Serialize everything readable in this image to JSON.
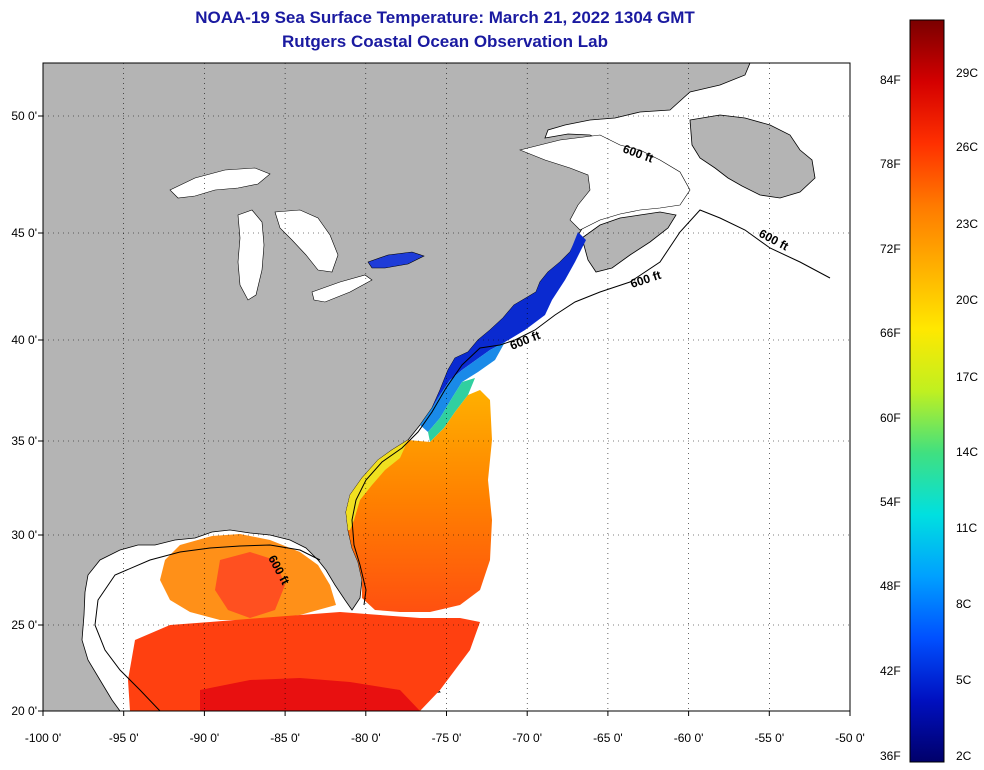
{
  "title": "NOAA-19 Sea Surface Temperature:  March 21, 2022 1304 GMT",
  "subtitle": "Rutgers Coastal Ocean Observation Lab",
  "x_ticks": [
    "-100 0'",
    "-95 0'",
    "-90 0'",
    "-85 0'",
    "-80 0'",
    "-75 0'",
    "-70 0'",
    "-65 0'",
    "-60 0'",
    "-55 0'",
    "-50 0'"
  ],
  "y_ticks": [
    "50 0'",
    "45 0'",
    "40 0'",
    "35 0'",
    "30 0'",
    "25 0'",
    "20 0'"
  ],
  "contour_labels": [
    "600 ft",
    "600 ft",
    "600 ft",
    "600 ft",
    "600 ft"
  ],
  "colorbar": {
    "f_labels": [
      "84F",
      "78F",
      "72F",
      "66F",
      "60F",
      "54F",
      "48F",
      "42F",
      "36F"
    ],
    "c_labels": [
      "29C",
      "26C",
      "23C",
      "20C",
      "17C",
      "14C",
      "11C",
      "8C",
      "5C",
      "2C"
    ],
    "colors": [
      "#7a0000",
      "#d40000",
      "#ff3000",
      "#ff7a00",
      "#ffb000",
      "#ffe800",
      "#c0f020",
      "#40e080",
      "#00e0e0",
      "#00a0ff",
      "#0050ff",
      "#0010c0",
      "#00006a"
    ]
  },
  "land_color": "#b4b4b4",
  "ocean_color": "#ffffff"
}
